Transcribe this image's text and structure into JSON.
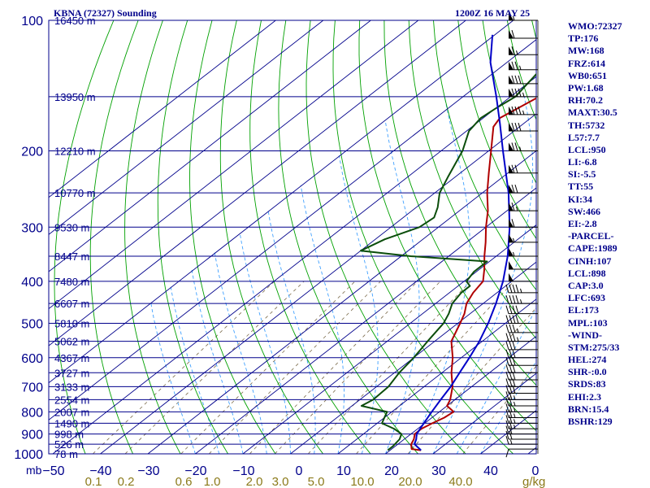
{
  "header": {
    "station": "KBNA (72327) Sounding",
    "time": "1200Z 16 MAY 25"
  },
  "stats": [
    "WMO:72327",
    "TP:176",
    "MW:168",
    "FRZ:614",
    "WB0:651",
    "PW:1.68",
    "RH:70.2",
    "MAXT:30.5",
    "TH:5732",
    "L57:7.7",
    "LCL:950",
    "LI:-6.8",
    "SI:-5.5",
    "TT:55",
    "KI:34",
    "SW:466",
    "EI:-2.8",
    "-PARCEL-",
    "CAPE:1989",
    "CINH:107",
    "LCL:898",
    "CAP:3.0",
    "LFC:693",
    "EL:173",
    "MPL:103",
    "-WIND-",
    "STM:275/33",
    "HEL:274",
    "SHR-:0.0",
    "SRDS:83",
    "EHI:2.3",
    "BRN:15.4",
    "BSHR:129"
  ],
  "colors": {
    "isobar": "#00008b",
    "isotherm": "#00008b",
    "dry_adiabat": "#00a000",
    "moist_adiabat": "#3fa0ff",
    "mixing_ratio": "#7a6a4a",
    "temperature": "#b00000",
    "dewpoint": "#0b4d0b",
    "parcel": "#0000c8",
    "wind_barb": "#000000",
    "label": "#00008b",
    "mixing_label": "#8b7a1a"
  },
  "chart_data": {
    "type": "skew-t log-p sounding",
    "x_unit": "mb",
    "y_unit": "g/kg",
    "pressure_levels": [
      100,
      200,
      300,
      400,
      500,
      600,
      700,
      800,
      900,
      1000
    ],
    "temperature_ticks": [
      -50,
      -40,
      -30,
      -20,
      -10,
      0,
      10,
      20,
      30,
      40,
      0
    ],
    "mixing_ratio_ticks": [
      "0.1",
      "0.2",
      "0.6",
      "1.0",
      "2.0",
      "3.0",
      "5.0",
      "10.0",
      "20.0",
      "40.0"
    ],
    "mixing_ratio_values": [
      0.1,
      0.2,
      0.6,
      1.0,
      2.0,
      3.0,
      5.0,
      10.0,
      20.0,
      40.0
    ],
    "height_labels": [
      {
        "p": 100,
        "label": "16450 m"
      },
      {
        "p": 150,
        "label": "13950 m"
      },
      {
        "p": 200,
        "label": "12210 m"
      },
      {
        "p": 250,
        "label": "10770 m"
      },
      {
        "p": 300,
        "label": "9530 m"
      },
      {
        "p": 350,
        "label": "8447 m"
      },
      {
        "p": 400,
        "label": "7480 m"
      },
      {
        "p": 450,
        "label": "6607 m"
      },
      {
        "p": 500,
        "label": "5810 m"
      },
      {
        "p": 550,
        "label": "5062 m"
      },
      {
        "p": 600,
        "label": "4367 m"
      },
      {
        "p": 650,
        "label": "3727 m"
      },
      {
        "p": 700,
        "label": "3133 m"
      },
      {
        "p": 750,
        "label": "2554 m"
      },
      {
        "p": 800,
        "label": "2007 m"
      },
      {
        "p": 850,
        "label": "1490 m"
      },
      {
        "p": 900,
        "label": "998 m"
      },
      {
        "p": 950,
        "label": "526 m"
      },
      {
        "p": 1000,
        "label": "78 m"
      }
    ],
    "series": [
      {
        "key": "temperature",
        "points": [
          [
            981,
            26.5
          ],
          [
            975,
            24.2
          ],
          [
            950,
            22.8
          ],
          [
            925,
            22.0
          ],
          [
            900,
            20.8
          ],
          [
            875,
            20.8
          ],
          [
            850,
            21.6
          ],
          [
            825,
            22.6
          ],
          [
            800,
            23.0
          ],
          [
            775,
            20.0
          ],
          [
            750,
            19.0
          ],
          [
            700,
            16.0
          ],
          [
            650,
            12.0
          ],
          [
            600,
            8.2
          ],
          [
            550,
            3.5
          ],
          [
            500,
            0.5
          ],
          [
            475,
            -1.2
          ],
          [
            450,
            -3.5
          ],
          [
            425,
            -5.0
          ],
          [
            400,
            -6.0
          ],
          [
            375,
            -9.0
          ],
          [
            350,
            -12.5
          ],
          [
            325,
            -16.0
          ],
          [
            300,
            -20.0
          ],
          [
            275,
            -24.0
          ],
          [
            250,
            -29.0
          ],
          [
            225,
            -34.0
          ],
          [
            200,
            -39.5
          ],
          [
            176,
            -45.5
          ],
          [
            168,
            -46.5
          ],
          [
            150,
            -44.0
          ],
          [
            125,
            -39.0
          ],
          [
            100,
            -35.5
          ]
        ]
      },
      {
        "key": "dewpoint",
        "points": [
          [
            981,
            19.5
          ],
          [
            960,
            19.5
          ],
          [
            925,
            19.0
          ],
          [
            900,
            18.0
          ],
          [
            875,
            15.0
          ],
          [
            850,
            11.0
          ],
          [
            825,
            10.0
          ],
          [
            800,
            9.0
          ],
          [
            775,
            2.0
          ],
          [
            750,
            2.8
          ],
          [
            700,
            2.5
          ],
          [
            650,
            1.0
          ],
          [
            600,
            0.0
          ],
          [
            550,
            -1.5
          ],
          [
            500,
            -3.0
          ],
          [
            475,
            -4.5
          ],
          [
            450,
            -6.5
          ],
          [
            425,
            -7.5
          ],
          [
            410,
            -7.5
          ],
          [
            400,
            -9.5
          ],
          [
            380,
            -10.5
          ],
          [
            360,
            -10.5
          ],
          [
            350,
            -28.0
          ],
          [
            340,
            -40.0
          ],
          [
            320,
            -38.0
          ],
          [
            300,
            -34.0
          ],
          [
            285,
            -33.5
          ],
          [
            270,
            -35.5
          ],
          [
            250,
            -39.0
          ],
          [
            230,
            -41.5
          ],
          [
            200,
            -45.5
          ],
          [
            180,
            -49.5
          ],
          [
            168,
            -50.5
          ],
          [
            160,
            -50.0
          ],
          [
            150,
            -49.0
          ],
          [
            130,
            -51.0
          ],
          [
            100,
            -54.0
          ]
        ]
      },
      {
        "key": "parcel",
        "points": [
          [
            981,
            26.5
          ],
          [
            950,
            23.5
          ],
          [
            925,
            22.5
          ],
          [
            900,
            21.2
          ],
          [
            850,
            19.8
          ],
          [
            800,
            18.4
          ],
          [
            750,
            17.0
          ],
          [
            700,
            15.6
          ],
          [
            650,
            13.7
          ],
          [
            600,
            11.7
          ],
          [
            550,
            9.4
          ],
          [
            500,
            6.4
          ],
          [
            450,
            2.7
          ],
          [
            400,
            -1.8
          ],
          [
            350,
            -7.6
          ],
          [
            300,
            -15.0
          ],
          [
            250,
            -24.5
          ],
          [
            200,
            -37.0
          ],
          [
            173,
            -45.0
          ],
          [
            150,
            -53.0
          ],
          [
            125,
            -63.5
          ],
          [
            108,
            -70.5
          ]
        ]
      }
    ],
    "wind_barbs": [
      {
        "p": 100,
        "dir": 265,
        "spd": 55
      },
      {
        "p": 110,
        "dir": 265,
        "spd": 60
      },
      {
        "p": 120,
        "dir": 265,
        "spd": 65
      },
      {
        "p": 130,
        "dir": 265,
        "spd": 75
      },
      {
        "p": 140,
        "dir": 265,
        "spd": 80
      },
      {
        "p": 150,
        "dir": 265,
        "spd": 85
      },
      {
        "p": 165,
        "dir": 265,
        "spd": 85
      },
      {
        "p": 180,
        "dir": 265,
        "spd": 80
      },
      {
        "p": 200,
        "dir": 260,
        "spd": 75
      },
      {
        "p": 225,
        "dir": 260,
        "spd": 70
      },
      {
        "p": 250,
        "dir": 255,
        "spd": 70
      },
      {
        "p": 275,
        "dir": 255,
        "spd": 65
      },
      {
        "p": 300,
        "dir": 255,
        "spd": 60
      },
      {
        "p": 325,
        "dir": 255,
        "spd": 55
      },
      {
        "p": 350,
        "dir": 255,
        "spd": 55
      },
      {
        "p": 375,
        "dir": 255,
        "spd": 50
      },
      {
        "p": 400,
        "dir": 250,
        "spd": 50
      },
      {
        "p": 425,
        "dir": 250,
        "spd": 45
      },
      {
        "p": 450,
        "dir": 250,
        "spd": 45
      },
      {
        "p": 475,
        "dir": 250,
        "spd": 40
      },
      {
        "p": 500,
        "dir": 250,
        "spd": 40
      },
      {
        "p": 525,
        "dir": 245,
        "spd": 35
      },
      {
        "p": 550,
        "dir": 245,
        "spd": 35
      },
      {
        "p": 575,
        "dir": 245,
        "spd": 30
      },
      {
        "p": 600,
        "dir": 240,
        "spd": 30
      },
      {
        "p": 625,
        "dir": 240,
        "spd": 30
      },
      {
        "p": 650,
        "dir": 235,
        "spd": 30
      },
      {
        "p": 675,
        "dir": 235,
        "spd": 30
      },
      {
        "p": 700,
        "dir": 230,
        "spd": 30
      },
      {
        "p": 725,
        "dir": 225,
        "spd": 30
      },
      {
        "p": 750,
        "dir": 225,
        "spd": 25
      },
      {
        "p": 775,
        "dir": 220,
        "spd": 25
      },
      {
        "p": 800,
        "dir": 215,
        "spd": 25
      },
      {
        "p": 825,
        "dir": 210,
        "spd": 25
      },
      {
        "p": 850,
        "dir": 205,
        "spd": 25
      },
      {
        "p": 875,
        "dir": 200,
        "spd": 25
      },
      {
        "p": 900,
        "dir": 195,
        "spd": 20
      },
      {
        "p": 925,
        "dir": 190,
        "spd": 20
      },
      {
        "p": 950,
        "dir": 185,
        "spd": 15
      },
      {
        "p": 975,
        "dir": 180,
        "spd": 10
      }
    ]
  }
}
